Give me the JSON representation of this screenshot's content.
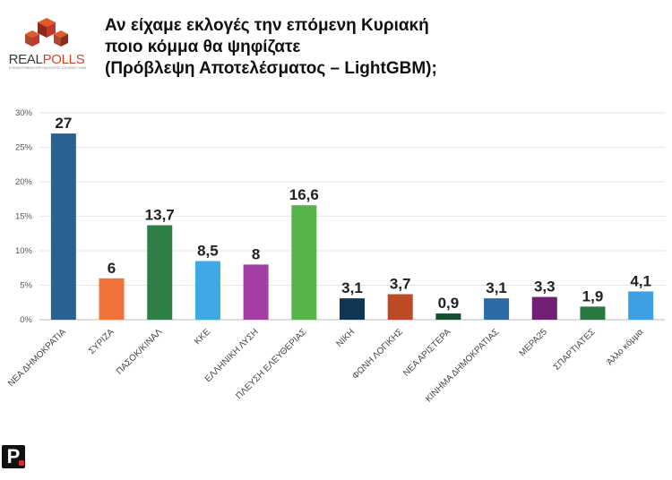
{
  "logo": {
    "name_part1": "REAL",
    "name_part2": "POLLS",
    "tagline": "ΕΞΕΙΔΙΚΕΥΜΕΝΗ ΕΡΕΥΝΑ ΑΓΟΡΑΣ & ΚΟΙΝΗΣ ΓΝΩΜΗΣ",
    "colors": [
      "#c0392b",
      "#e05a2b",
      "#8e2a1c",
      "#a9492f"
    ]
  },
  "title": {
    "line1": "Αν είχαμε εκλογές την επόμενη Κυριακή",
    "line2": "ποιο κόμμα θα ψηφίζατε",
    "line3": "(Πρόβλεψη Αποτελέσματος – LightGBM);"
  },
  "brand_mark": {
    "letter": "P"
  },
  "chart_data": {
    "type": "bar",
    "title": "Αν είχαμε εκλογές την επόμενη Κυριακή ποιο κόμμα θα ψηφίζατε (Πρόβλεψη Αποτελέσματος – LightGBM);",
    "categories": [
      "ΝΕΑ ΔΗΜΟΚΡΑΤΙΑ",
      "ΣΥΡΙΖΑ",
      "ΠΑΣΟΚ/ΚΙΝΑΛ",
      "ΚΚΕ",
      "ΕΛΛΗΝΙΚΗ ΛΥΣΗ",
      "ΠΛΕΥΣΗ ΕΛΕΥΘΕΡΙΑΣ",
      "ΝΙΚΗ",
      "ΦΩΝΗ ΛΟΓΙΚΗΣ",
      "ΝΕΑ ΑΡΙΣΤΕΡΑ",
      "ΚΙΝΗΜΑ ΔΗΜΟΚΡΑΤΙΑΣ",
      "ΜΕΡΑ25",
      "ΣΠΑΡΤΙΑΤΕΣ",
      "Άλλο κόμμα"
    ],
    "values": [
      27,
      6,
      13.7,
      8.5,
      8,
      16.6,
      3.1,
      3.7,
      0.9,
      3.1,
      3.3,
      1.9,
      4.1
    ],
    "value_labels": [
      "27",
      "6",
      "13,7",
      "8,5",
      "8",
      "16,6",
      "3,1",
      "3,7",
      "0,9",
      "3,1",
      "3,3",
      "1,9",
      "4,1"
    ],
    "colors": [
      "#2a6190",
      "#f0743a",
      "#2e8048",
      "#3fa9e6",
      "#a33fa2",
      "#56b548",
      "#0f3653",
      "#bd4a26",
      "#174f2c",
      "#2c6ba6",
      "#702174",
      "#2c7843",
      "#3b9fe1"
    ],
    "xlabel": "",
    "ylabel": "",
    "ylim": [
      0,
      30
    ],
    "yticks": [
      0,
      5,
      10,
      15,
      20,
      25,
      30
    ],
    "ytick_labels": [
      "0%",
      "5%",
      "10%",
      "15%",
      "20%",
      "25%",
      "30%"
    ],
    "grid": true,
    "legend": "none"
  }
}
